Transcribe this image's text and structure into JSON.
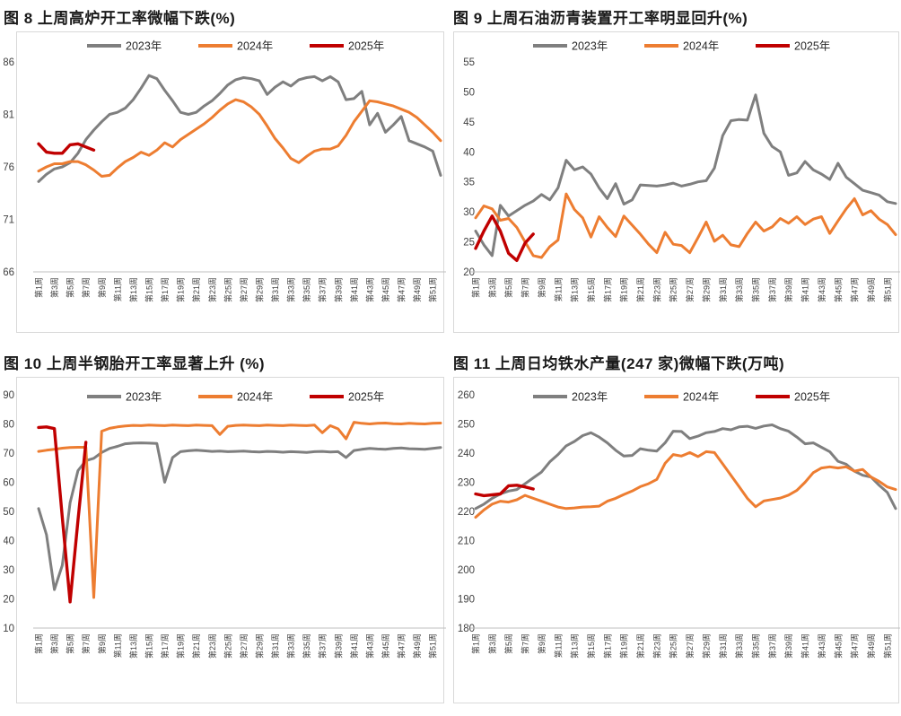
{
  "colors": {
    "series_2023": "#7F7F7F",
    "series_2024": "#ED7D31",
    "series_2025": "#C00000",
    "panel_border": "#D9D9D9",
    "plot_baseline": "#BFBFBF",
    "axis_text": "#404040",
    "title_text": "#1A1A1A"
  },
  "legend_labels": [
    "2023年",
    "2024年",
    "2025年"
  ],
  "x_axis_labels": [
    "第1周",
    "第3周",
    "第5周",
    "第7周",
    "第9周",
    "第11周",
    "第13周",
    "第15周",
    "第17周",
    "第19周",
    "第21周",
    "第23周",
    "第25周",
    "第27周",
    "第29周",
    "第31周",
    "第33周",
    "第35周",
    "第37周",
    "第39周",
    "第41周",
    "第43周",
    "第45周",
    "第47周",
    "第49周",
    "第51周"
  ],
  "chart_data": [
    {
      "type": "line",
      "title": "图 8  上周高炉开工率微幅下跌(%)",
      "panel": "top-left",
      "x_unit": "week (1-52)",
      "ylim": [
        66,
        86
      ],
      "y_ticks": [
        86,
        81,
        76,
        71,
        66
      ],
      "grid": "off",
      "legend_position": "top-center",
      "series": [
        {
          "name": "2023年",
          "color": "#7F7F7F",
          "values": [
            74.6,
            75.3,
            75.8,
            76.0,
            76.4,
            77.3,
            78.6,
            79.5,
            80.3,
            81.0,
            81.2,
            81.6,
            82.4,
            83.5,
            84.7,
            84.4,
            83.3,
            82.3,
            81.2,
            81.0,
            81.2,
            81.8,
            82.3,
            83.0,
            83.8,
            84.3,
            84.5,
            84.4,
            84.2,
            82.9,
            83.6,
            84.1,
            83.7,
            84.3,
            84.5,
            84.6,
            84.2,
            84.6,
            84.1,
            82.4,
            82.5,
            83.2,
            80.0,
            81.1,
            79.3,
            80.0,
            80.8,
            78.5,
            78.2,
            77.9,
            77.5,
            75.2
          ]
        },
        {
          "name": "2024年",
          "color": "#ED7D31",
          "values": [
            75.6,
            76.0,
            76.3,
            76.3,
            76.5,
            76.5,
            76.2,
            75.7,
            75.1,
            75.2,
            75.9,
            76.5,
            76.9,
            77.4,
            77.1,
            77.6,
            78.3,
            77.9,
            78.6,
            79.1,
            79.6,
            80.1,
            80.7,
            81.4,
            82.0,
            82.4,
            82.2,
            81.7,
            81.0,
            79.9,
            78.7,
            77.8,
            76.8,
            76.4,
            77.0,
            77.5,
            77.7,
            77.7,
            78.0,
            79.0,
            80.3,
            81.3,
            82.3,
            82.2,
            82.0,
            81.8,
            81.5,
            81.2,
            80.7,
            80.0,
            79.3,
            78.5
          ]
        },
        {
          "name": "2025年",
          "color": "#C00000",
          "values": [
            78.2,
            77.4,
            77.3,
            77.3,
            78.1,
            78.2,
            77.9,
            77.6
          ]
        }
      ]
    },
    {
      "type": "line",
      "title": "图 9  上周石油沥青装置开工率明显回升(%)",
      "panel": "top-right",
      "x_unit": "week (1-52)",
      "ylim": [
        20,
        55
      ],
      "y_ticks": [
        55,
        50,
        45,
        40,
        35,
        30,
        25,
        20
      ],
      "grid": "off",
      "legend_position": "top-center",
      "series": [
        {
          "name": "2023年",
          "color": "#7F7F7F",
          "values": [
            26.8,
            24.5,
            22.7,
            31.1,
            29.3,
            30.2,
            31.1,
            31.8,
            32.9,
            32.0,
            34.0,
            38.6,
            37.0,
            37.5,
            36.3,
            34.0,
            32.2,
            34.7,
            31.3,
            32.0,
            34.5,
            34.4,
            34.3,
            34.5,
            34.8,
            34.3,
            34.6,
            35.0,
            35.2,
            37.3,
            42.7,
            45.2,
            45.4,
            45.3,
            49.5,
            43.1,
            40.9,
            40.0,
            36.1,
            36.5,
            38.4,
            37.0,
            36.3,
            35.4,
            38.1,
            35.8,
            34.7,
            33.6,
            33.2,
            32.8,
            31.7,
            31.4
          ]
        },
        {
          "name": "2024年",
          "color": "#ED7D31",
          "values": [
            29.0,
            31.0,
            30.5,
            28.6,
            28.9,
            27.4,
            25.0,
            22.7,
            22.4,
            24.2,
            25.3,
            33.0,
            30.4,
            29.0,
            25.8,
            29.2,
            27.4,
            25.9,
            29.3,
            27.8,
            26.3,
            24.6,
            23.2,
            26.6,
            24.6,
            24.4,
            23.2,
            25.7,
            28.3,
            25.1,
            26.1,
            24.5,
            24.2,
            26.4,
            28.3,
            26.8,
            27.5,
            28.9,
            28.1,
            29.2,
            27.9,
            28.8,
            29.2,
            26.4,
            28.5,
            30.5,
            32.2,
            29.5,
            30.2,
            28.8,
            27.9,
            26.2
          ]
        },
        {
          "name": "2025年",
          "color": "#C00000",
          "values": [
            23.9,
            26.8,
            29.3,
            26.8,
            23.1,
            21.9,
            24.8,
            26.3
          ]
        }
      ]
    },
    {
      "type": "line",
      "title": "图 10  上周半钢胎开工率显著上升 (%)",
      "panel": "bottom-left",
      "x_unit": "week (1-52)",
      "ylim": [
        10,
        90
      ],
      "y_ticks": [
        90,
        80,
        70,
        60,
        50,
        40,
        30,
        20,
        10
      ],
      "grid": "off",
      "legend_position": "top-center",
      "series": [
        {
          "name": "2023年",
          "color": "#7F7F7F",
          "values": [
            51.0,
            42.0,
            23.2,
            31.5,
            53.0,
            64.0,
            67.4,
            68.2,
            70.2,
            71.6,
            72.3,
            73.2,
            73.4,
            73.5,
            73.4,
            73.3,
            60.0,
            68.5,
            70.5,
            70.8,
            71.0,
            70.8,
            70.6,
            70.7,
            70.5,
            70.6,
            70.7,
            70.5,
            70.4,
            70.6,
            70.5,
            70.3,
            70.5,
            70.4,
            70.2,
            70.5,
            70.6,
            70.4,
            70.5,
            68.5,
            70.9,
            71.3,
            71.6,
            71.4,
            71.3,
            71.6,
            71.8,
            71.5,
            71.4,
            71.3,
            71.6,
            71.9
          ]
        },
        {
          "name": "2024年",
          "color": "#ED7D31",
          "values": [
            70.6,
            71.0,
            71.3,
            71.7,
            71.9,
            72.0,
            72.0,
            20.5,
            77.5,
            78.5,
            79.0,
            79.3,
            79.5,
            79.4,
            79.6,
            79.5,
            79.4,
            79.6,
            79.5,
            79.4,
            79.6,
            79.5,
            79.4,
            76.4,
            79.2,
            79.5,
            79.6,
            79.5,
            79.4,
            79.6,
            79.5,
            79.4,
            79.6,
            79.5,
            79.4,
            79.6,
            77.0,
            79.4,
            78.3,
            74.9,
            80.6,
            80.2,
            80.0,
            80.2,
            80.3,
            80.1,
            80.0,
            80.2,
            80.1,
            80.0,
            80.2,
            80.3
          ]
        },
        {
          "name": "2025年",
          "color": "#C00000",
          "values": [
            78.8,
            79.0,
            78.4,
            48.0,
            19.0,
            47.0,
            73.7
          ]
        }
      ]
    },
    {
      "type": "line",
      "title": "图 11  上周日均铁水产量(247 家)微幅下跌(万吨)",
      "panel": "bottom-right",
      "x_unit": "week (1-52)",
      "ylim": [
        180,
        260
      ],
      "y_ticks": [
        260,
        250,
        240,
        230,
        220,
        210,
        200,
        190,
        180
      ],
      "grid": "off",
      "legend_position": "top-center",
      "series": [
        {
          "name": "2023年",
          "color": "#7F7F7F",
          "values": [
            221.0,
            222.5,
            224.5,
            226.0,
            227.0,
            227.5,
            229.5,
            231.5,
            233.5,
            237.0,
            239.5,
            242.5,
            244.0,
            246.0,
            247.0,
            245.5,
            243.5,
            241.0,
            239.0,
            239.2,
            241.5,
            241.0,
            240.7,
            243.5,
            247.5,
            247.4,
            245.0,
            245.8,
            247.0,
            247.4,
            248.4,
            248.0,
            249.0,
            249.2,
            248.5,
            249.3,
            249.7,
            248.4,
            247.5,
            245.5,
            243.2,
            243.5,
            242.0,
            240.5,
            237.2,
            236.2,
            233.8,
            232.4,
            231.8,
            229.0,
            226.5,
            221.0
          ]
        },
        {
          "name": "2024年",
          "color": "#ED7D31",
          "values": [
            218.0,
            220.5,
            222.5,
            223.5,
            223.2,
            224.0,
            225.5,
            224.5,
            223.5,
            222.5,
            221.5,
            221.0,
            221.2,
            221.5,
            221.6,
            221.8,
            223.5,
            224.5,
            225.8,
            227.0,
            228.5,
            229.5,
            231.0,
            236.5,
            239.5,
            239.0,
            240.2,
            238.8,
            240.5,
            240.2,
            236.3,
            232.4,
            228.5,
            224.5,
            221.6,
            223.6,
            224.1,
            224.6,
            225.6,
            227.2,
            230.0,
            233.3,
            234.9,
            235.3,
            234.9,
            235.3,
            233.8,
            234.4,
            231.8,
            230.3,
            228.4,
            227.5
          ]
        },
        {
          "name": "2025年",
          "color": "#C00000",
          "values": [
            226.0,
            225.4,
            225.7,
            226.0,
            228.8,
            229.0,
            228.4,
            227.7
          ]
        }
      ]
    }
  ]
}
